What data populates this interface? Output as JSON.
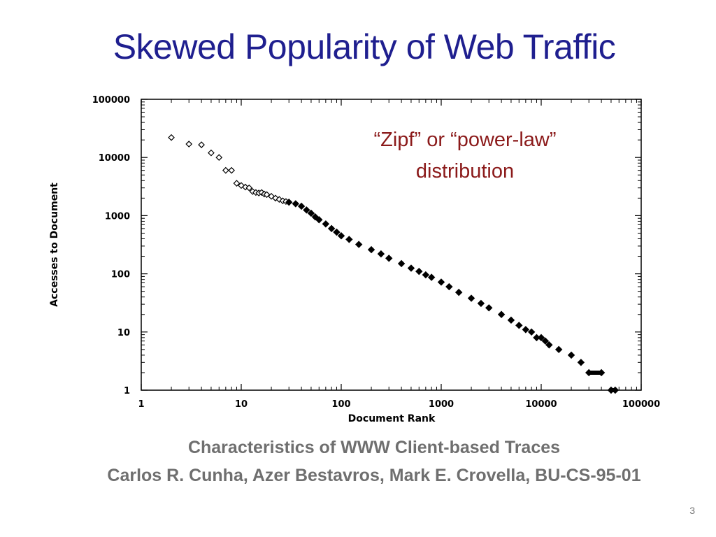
{
  "slide": {
    "title": "Skewed Popularity of Web Traffic",
    "annotation_line1": "“Zipf” or “power-law”",
    "annotation_line2": "distribution",
    "citation_line1": "Characteristics of WWW Client-based Traces",
    "citation_line2": "Carlos R. Cunha, Azer Bestavros, Mark E. Crovella, BU-CS-95-01",
    "page_number": "3"
  },
  "colors": {
    "title": "#1f1f8f",
    "annotation": "#8b1a1a",
    "citation": "#6f6f6f",
    "points": "#000000"
  },
  "chart_data": {
    "type": "scatter",
    "xlabel": "Document Rank",
    "ylabel": "Accesses to Document",
    "xscale": "log",
    "yscale": "log",
    "xlim": [
      1,
      100000
    ],
    "ylim": [
      1,
      100000
    ],
    "xticks": [
      "1",
      "10",
      "100",
      "1000",
      "10000",
      "100000"
    ],
    "yticks": [
      "1",
      "10",
      "100",
      "1000",
      "10000",
      "100000"
    ],
    "grid": false,
    "marker": "diamond",
    "points": [
      [
        2,
        22000
      ],
      [
        3,
        17000
      ],
      [
        4,
        16500
      ],
      [
        5,
        12000
      ],
      [
        6,
        10000
      ],
      [
        7,
        6000
      ],
      [
        8,
        6000
      ],
      [
        9,
        3600
      ],
      [
        10,
        3300
      ],
      [
        11,
        3100
      ],
      [
        12,
        3000
      ],
      [
        13,
        2600
      ],
      [
        14,
        2500
      ],
      [
        15,
        2450
      ],
      [
        16,
        2500
      ],
      [
        17,
        2350
      ],
      [
        18,
        2300
      ],
      [
        20,
        2150
      ],
      [
        22,
        2000
      ],
      [
        24,
        1900
      ],
      [
        26,
        1800
      ],
      [
        28,
        1750
      ],
      [
        30,
        1700
      ],
      [
        35,
        1600
      ],
      [
        40,
        1450
      ],
      [
        45,
        1250
      ],
      [
        50,
        1100
      ],
      [
        55,
        950
      ],
      [
        60,
        850
      ],
      [
        70,
        720
      ],
      [
        80,
        600
      ],
      [
        90,
        520
      ],
      [
        100,
        450
      ],
      [
        120,
        390
      ],
      [
        150,
        320
      ],
      [
        200,
        260
      ],
      [
        250,
        220
      ],
      [
        300,
        185
      ],
      [
        400,
        150
      ],
      [
        500,
        125
      ],
      [
        600,
        110
      ],
      [
        700,
        96
      ],
      [
        800,
        87
      ],
      [
        1000,
        72
      ],
      [
        1200,
        60
      ],
      [
        1500,
        48
      ],
      [
        2000,
        38
      ],
      [
        2500,
        31
      ],
      [
        3000,
        26
      ],
      [
        4000,
        20
      ],
      [
        5000,
        16
      ],
      [
        6000,
        13
      ],
      [
        7000,
        11
      ],
      [
        8000,
        10
      ],
      [
        9000,
        8
      ],
      [
        10000,
        8
      ],
      [
        11000,
        7
      ],
      [
        12000,
        6
      ],
      [
        15000,
        5
      ],
      [
        20000,
        4
      ],
      [
        25000,
        3
      ],
      [
        30000,
        2
      ],
      [
        40000,
        2
      ],
      [
        50000,
        1
      ],
      [
        55000,
        1
      ]
    ]
  }
}
